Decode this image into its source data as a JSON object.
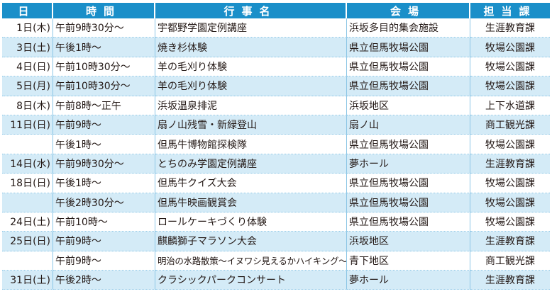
{
  "header": {
    "date": "日",
    "time": "時間",
    "event": "行事名",
    "venue": "会場",
    "department": "担当課"
  },
  "rows": [
    {
      "date": "1日(木)",
      "time": "午前9時30分〜",
      "event": "宇都野学園定例講座",
      "venue": "浜坂多目的集会施設",
      "department": "生涯教育課"
    },
    {
      "date": "3日(土)",
      "time": "午後1時〜",
      "event": "焼き杉体験",
      "venue": "県立但馬牧場公園",
      "department": "牧場公園課"
    },
    {
      "date": "4日(日)",
      "time": "午前10時30分〜",
      "event": "羊の毛刈り体験",
      "venue": "県立但馬牧場公園",
      "department": "牧場公園課"
    },
    {
      "date": "5日(月)",
      "time": "午前10時30分〜",
      "event": "羊の毛刈り体験",
      "venue": "県立但馬牧場公園",
      "department": "牧場公園課"
    },
    {
      "date": "8日(木)",
      "time": "午前8時〜正午",
      "event": "浜坂温泉排泥",
      "venue": "浜坂地区",
      "department": "上下水道課"
    },
    {
      "date": "11日(日)",
      "time": "午前9時〜",
      "event": "扇ノ山残雪・新緑登山",
      "venue": "扇ノ山",
      "department": "商工観光課"
    },
    {
      "date": "",
      "time": "午後1時〜",
      "event": "但馬牛博物館探検隊",
      "venue": "県立但馬牧場公園",
      "department": "牧場公園課"
    },
    {
      "date": "14日(水)",
      "time": "午前9時30分〜",
      "event": "とちのみ学園定例講座",
      "venue": "夢ホール",
      "department": "生涯教育課"
    },
    {
      "date": "18日(日)",
      "time": "午後1時〜",
      "event": "但馬牛クイズ大会",
      "venue": "県立但馬牧場公園",
      "department": "牧場公園課"
    },
    {
      "date": "",
      "time": "午後2時30分〜",
      "event": "但馬牛映画観賞会",
      "venue": "県立但馬牧場公園",
      "department": "牧場公園課"
    },
    {
      "date": "24日(土)",
      "time": "午前10時〜",
      "event": "ロールケーキづくり体験",
      "venue": "県立但馬牧場公園",
      "department": "牧場公園課"
    },
    {
      "date": "25日(日)",
      "time": "午前9時〜",
      "event": "麒麟獅子マラソン大会",
      "venue": "浜坂地区",
      "department": "生涯教育課"
    },
    {
      "date": "",
      "time": "午前9時〜",
      "event": "明治の水路散策〜イヌワシ見えるかハイキング〜",
      "venue": "青下地区",
      "department": "商工観光課"
    },
    {
      "date": "31日(土)",
      "time": "午後2時〜",
      "event": "クラシックパークコンサート",
      "venue": "夢ホール",
      "department": "生涯教育課"
    }
  ]
}
